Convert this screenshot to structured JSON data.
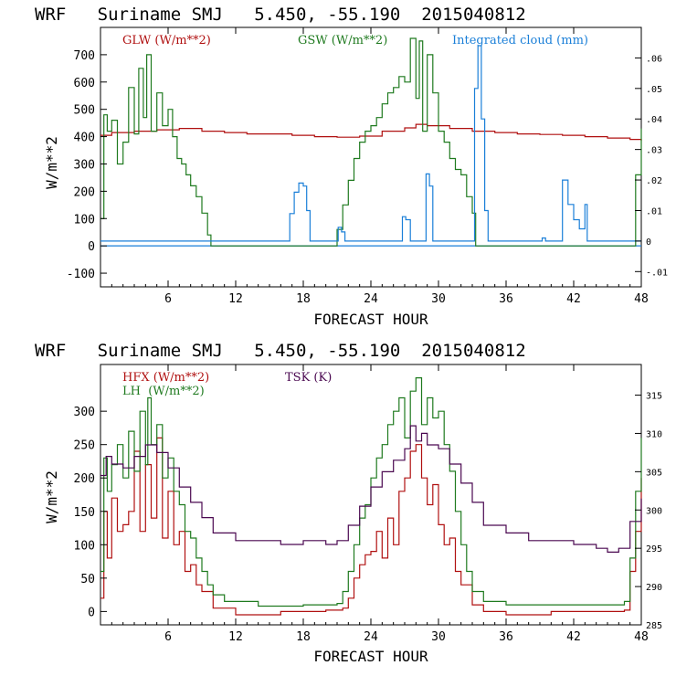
{
  "chart_data": [
    {
      "type": "line",
      "title": "WRF   Suriname SMJ   5.450, -55.190  2015040812",
      "xlabel": "FORECAST HOUR",
      "ylabel": "W/m**2",
      "xlim": [
        0,
        48
      ],
      "ylim": [
        -150,
        800
      ],
      "y2lim": [
        -0.015,
        0.07
      ],
      "xticks": [
        6,
        12,
        18,
        24,
        30,
        36,
        42,
        48
      ],
      "xtick_labels": [
        "6",
        "12",
        "18",
        "24",
        "30",
        "36",
        "42",
        "48"
      ],
      "yticks": [
        -100,
        0,
        100,
        200,
        300,
        400,
        500,
        600,
        700
      ],
      "ytick_labels": [
        "-100",
        "0",
        "100",
        "200",
        "300",
        "400",
        "500",
        "600",
        "700"
      ],
      "y2ticks": [
        -0.01,
        0,
        0.01,
        0.02,
        0.03,
        0.04,
        0.05,
        0.06
      ],
      "y2tick_labels": [
        "-.01",
        "0",
        ".01",
        ".02",
        ".03",
        ".04",
        ".05",
        ".06"
      ],
      "grid": false,
      "legend": "top",
      "series": [
        {
          "name": "GLW (W/m**2)",
          "color": "#b01010",
          "axis": "left",
          "x": [
            0,
            1,
            3,
            5,
            7,
            9,
            11,
            13,
            15,
            17,
            19,
            21,
            23,
            25,
            27,
            28,
            29,
            31,
            33,
            35,
            37,
            39,
            41,
            43,
            45,
            47,
            48
          ],
          "y": [
            405,
            415,
            420,
            425,
            430,
            420,
            415,
            410,
            410,
            405,
            400,
            398,
            402,
            420,
            432,
            445,
            440,
            430,
            420,
            415,
            410,
            408,
            405,
            400,
            395,
            390,
            385
          ]
        },
        {
          "name": "GSW (W/m**2)",
          "color": "#1f7a1f",
          "axis": "left",
          "x": [
            0,
            0.3,
            0.6,
            1,
            1.5,
            2,
            2.5,
            3,
            3.4,
            3.8,
            4.1,
            4.5,
            5,
            5.5,
            6,
            6.4,
            6.8,
            7.2,
            7.6,
            8,
            8.5,
            9,
            9.5,
            9.8,
            20.5,
            21,
            21.5,
            22,
            22.5,
            23,
            23.5,
            24,
            24.5,
            25,
            25.5,
            26,
            26.5,
            27,
            27.5,
            28,
            28.3,
            28.6,
            29,
            29.5,
            30,
            30.5,
            31,
            31.5,
            32,
            32.5,
            33,
            33.3,
            47,
            47.5,
            48
          ],
          "y": [
            100,
            480,
            420,
            460,
            300,
            380,
            580,
            410,
            650,
            470,
            700,
            420,
            560,
            440,
            500,
            400,
            320,
            300,
            260,
            220,
            180,
            120,
            40,
            0,
            0,
            60,
            150,
            240,
            320,
            380,
            420,
            440,
            470,
            520,
            560,
            580,
            620,
            600,
            760,
            540,
            750,
            420,
            700,
            560,
            420,
            380,
            320,
            280,
            260,
            180,
            120,
            0,
            0,
            260,
            430
          ]
        },
        {
          "name": "Integrated cloud (mm)",
          "color": "#1a7fd8",
          "axis": "right",
          "x": [
            0,
            16.5,
            16.8,
            17.2,
            17.6,
            18,
            18.3,
            18.6,
            20.8,
            21.1,
            21.4,
            21.7,
            26.5,
            26.8,
            27.1,
            27.5,
            28.6,
            28.9,
            29.2,
            29.5,
            33,
            33.2,
            33.5,
            33.8,
            34.1,
            34.4,
            39,
            39.2,
            39.5,
            40.5,
            41,
            41.5,
            42,
            42.5,
            43,
            43.2,
            48
          ],
          "y": [
            0,
            0,
            0.009,
            0.016,
            0.019,
            0.018,
            0.01,
            0,
            0,
            0.0045,
            0.003,
            0,
            0,
            0.008,
            0.007,
            0,
            0,
            0.022,
            0.018,
            0,
            0,
            0.05,
            0.064,
            0.04,
            0.01,
            0,
            0,
            0.001,
            0,
            0,
            0.02,
            0.012,
            0.007,
            0.004,
            0.012,
            0,
            0
          ]
        }
      ]
    },
    {
      "type": "line",
      "title": "WRF   Suriname SMJ   5.450, -55.190  2015040812",
      "xlabel": "FORECAST HOUR",
      "ylabel": "W/m**2",
      "xlim": [
        0,
        48
      ],
      "ylim": [
        -20,
        370
      ],
      "y2lim": [
        285,
        319
      ],
      "xticks": [
        6,
        12,
        18,
        24,
        30,
        36,
        42,
        48
      ],
      "xtick_labels": [
        "6",
        "12",
        "18",
        "24",
        "30",
        "36",
        "42",
        "48"
      ],
      "yticks": [
        0,
        50,
        100,
        150,
        200,
        250,
        300
      ],
      "ytick_labels": [
        "0",
        "50",
        "100",
        "150",
        "200",
        "250",
        "300"
      ],
      "y2ticks": [
        285,
        290,
        295,
        300,
        305,
        310,
        315
      ],
      "y2tick_labels": [
        "285",
        "290",
        "295",
        "300",
        "305",
        "310",
        "315"
      ],
      "grid": false,
      "legend": "top-left",
      "series": [
        {
          "name": "HFX (W/m**2)",
          "color": "#b01010",
          "axis": "left",
          "x": [
            0,
            0.3,
            0.6,
            1,
            1.5,
            2,
            2.5,
            3,
            3.5,
            4,
            4.5,
            5,
            5.5,
            6,
            6.5,
            7,
            7.5,
            8,
            8.5,
            9,
            10,
            12,
            16,
            20,
            21.5,
            22,
            22.5,
            23,
            23.5,
            24,
            24.5,
            25,
            25.5,
            26,
            26.5,
            27,
            27.5,
            28,
            28.5,
            29,
            29.5,
            30,
            30.5,
            31,
            31.5,
            32,
            33,
            34,
            36,
            40,
            44,
            46.5,
            47,
            47.5,
            48
          ],
          "y": [
            20,
            150,
            80,
            170,
            120,
            130,
            150,
            240,
            120,
            220,
            140,
            260,
            110,
            180,
            100,
            120,
            60,
            70,
            40,
            30,
            5,
            -5,
            0,
            2,
            5,
            20,
            50,
            70,
            85,
            90,
            120,
            80,
            140,
            100,
            180,
            200,
            240,
            250,
            200,
            160,
            190,
            130,
            100,
            110,
            60,
            40,
            10,
            0,
            -5,
            0,
            0,
            2,
            60,
            120,
            200
          ]
        },
        {
          "name": "LH  (W/m**2)",
          "color": "#1f7a1f",
          "axis": "left",
          "x": [
            0,
            0.3,
            0.6,
            1,
            1.5,
            2,
            2.5,
            3,
            3.5,
            4,
            4.2,
            4.5,
            5,
            5.5,
            6,
            6.5,
            7,
            7.5,
            8,
            8.5,
            9,
            9.5,
            10,
            11,
            14,
            18,
            21,
            21.5,
            22,
            22.5,
            23,
            23.5,
            24,
            24.5,
            25,
            25.5,
            26,
            26.5,
            27,
            27.5,
            28,
            28.5,
            29,
            29.5,
            30,
            30.5,
            31,
            31.5,
            32,
            32.5,
            33,
            34,
            36,
            40,
            44,
            46.5,
            47,
            47.5,
            48
          ],
          "y": [
            60,
            230,
            180,
            220,
            250,
            200,
            270,
            210,
            300,
            220,
            320,
            250,
            280,
            200,
            230,
            180,
            160,
            120,
            110,
            80,
            60,
            40,
            25,
            15,
            8,
            10,
            12,
            30,
            60,
            100,
            140,
            160,
            200,
            230,
            250,
            280,
            300,
            320,
            260,
            330,
            350,
            280,
            320,
            290,
            300,
            250,
            210,
            150,
            100,
            60,
            30,
            15,
            10,
            10,
            10,
            15,
            80,
            180,
            260
          ]
        },
        {
          "name": "TSK (K)",
          "color": "#4a0850",
          "axis": "right",
          "x": [
            0,
            0.5,
            1,
            2,
            3,
            4,
            5,
            6,
            7,
            8,
            9,
            10,
            12,
            14,
            16,
            18,
            20,
            21,
            22,
            23,
            24,
            25,
            26,
            27,
            27.5,
            28,
            28.5,
            29,
            30,
            31,
            32,
            33,
            34,
            36,
            38,
            40,
            42,
            44,
            45,
            46,
            47,
            48
          ],
          "y": [
            304.5,
            307,
            306,
            305.5,
            307,
            308.5,
            307.5,
            305.5,
            303,
            301,
            299,
            297,
            296,
            296,
            295.5,
            296,
            295.5,
            296,
            298,
            300.5,
            303,
            305,
            306.5,
            308,
            311,
            309,
            310,
            308.5,
            308,
            306,
            303.5,
            301,
            298,
            297,
            296,
            296,
            295.5,
            295,
            294.5,
            295,
            298.5,
            301.5
          ]
        }
      ]
    }
  ]
}
